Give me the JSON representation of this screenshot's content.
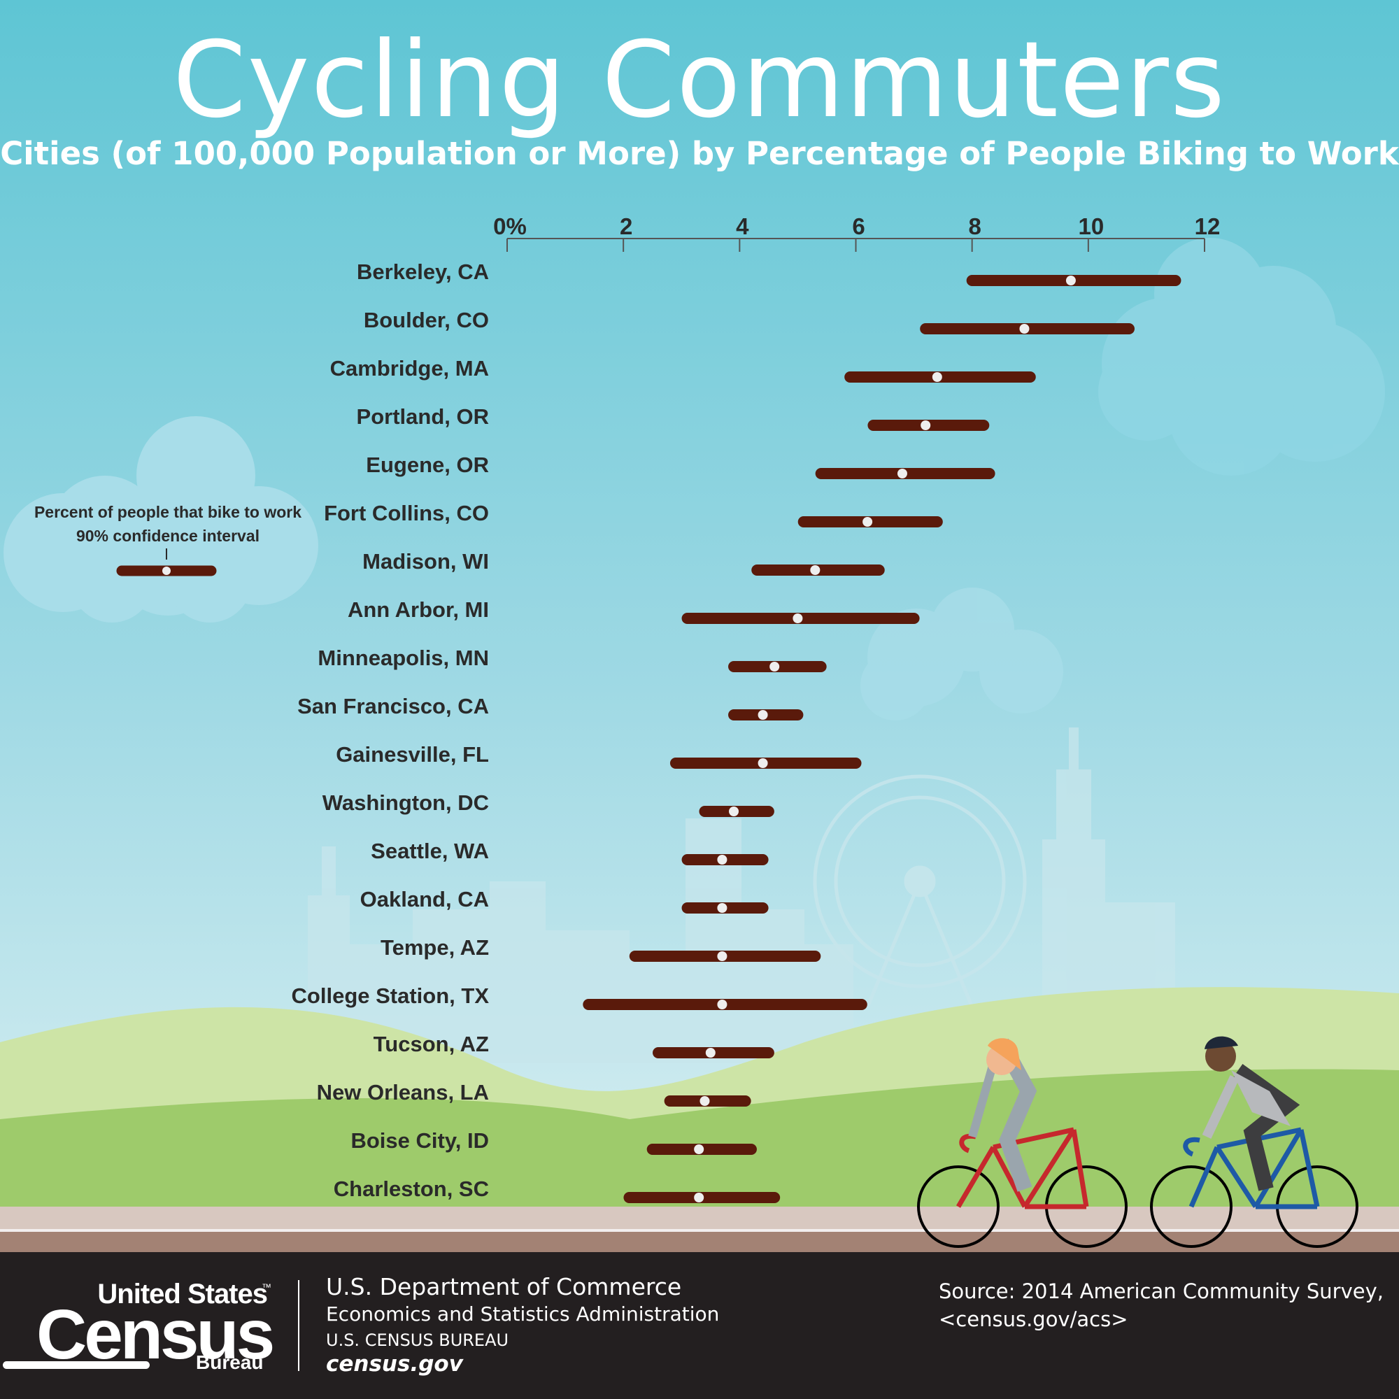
{
  "header": {
    "title": "Cycling Commuters",
    "subtitle": "Cities (of 100,000 Population or More) by Percentage of People Biking to Work"
  },
  "legend": {
    "line1": "Percent of people that bike to work",
    "line2": "90% confidence interval"
  },
  "colors": {
    "sky_top": "#5ec5d4",
    "sky_bottom": "#d3ecf0",
    "bar": "#5a1a0b",
    "dot": "#eeeeee",
    "text": "#2a2a2a",
    "footer": "#231f20",
    "cloud": "#a8dde9",
    "hill_light": "#cde4a6",
    "hill_dark": "#9ecb6b"
  },
  "chart_data": {
    "type": "dot-interval",
    "xlabel": "",
    "ylabel": "",
    "x_ticks": [
      "0%",
      "2",
      "4",
      "6",
      "8",
      "10",
      "12"
    ],
    "xlim": [
      0,
      12
    ],
    "grid": false,
    "series": [
      {
        "values": [
          {
            "city": "Berkeley, CA",
            "estimate": 9.7,
            "low": 8.0,
            "high": 11.5
          },
          {
            "city": "Boulder, CO",
            "estimate": 8.9,
            "low": 7.2,
            "high": 10.7
          },
          {
            "city": "Cambridge, MA",
            "estimate": 7.4,
            "low": 5.9,
            "high": 9.0
          },
          {
            "city": "Portland, OR",
            "estimate": 7.2,
            "low": 6.3,
            "high": 8.2
          },
          {
            "city": "Eugene, OR",
            "estimate": 6.8,
            "low": 5.4,
            "high": 8.3
          },
          {
            "city": "Fort Collins, CO",
            "estimate": 6.2,
            "low": 5.1,
            "high": 7.4
          },
          {
            "city": "Madison, WI",
            "estimate": 5.3,
            "low": 4.3,
            "high": 6.4
          },
          {
            "city": "Ann Arbor, MI",
            "estimate": 5.0,
            "low": 3.1,
            "high": 7.0
          },
          {
            "city": "Minneapolis, MN",
            "estimate": 4.6,
            "low": 3.9,
            "high": 5.4
          },
          {
            "city": "San Francisco, CA",
            "estimate": 4.4,
            "low": 3.9,
            "high": 5.0
          },
          {
            "city": "Gainesville, FL",
            "estimate": 4.4,
            "low": 2.9,
            "high": 6.0
          },
          {
            "city": "Washington, DC",
            "estimate": 3.9,
            "low": 3.4,
            "high": 4.5
          },
          {
            "city": "Seattle, WA",
            "estimate": 3.7,
            "low": 3.1,
            "high": 4.4
          },
          {
            "city": "Oakland, CA",
            "estimate": 3.7,
            "low": 3.1,
            "high": 4.4
          },
          {
            "city": "Tempe, AZ",
            "estimate": 3.7,
            "low": 2.2,
            "high": 5.3
          },
          {
            "city": "College Station, TX",
            "estimate": 3.7,
            "low": 1.4,
            "high": 6.1
          },
          {
            "city": "Tucson, AZ",
            "estimate": 3.5,
            "low": 2.6,
            "high": 4.5
          },
          {
            "city": "New Orleans, LA",
            "estimate": 3.4,
            "low": 2.8,
            "high": 4.1
          },
          {
            "city": "Boise City, ID",
            "estimate": 3.3,
            "low": 2.5,
            "high": 4.2
          },
          {
            "city": "Charleston, SC",
            "estimate": 3.3,
            "low": 2.1,
            "high": 4.6
          }
        ]
      }
    ]
  },
  "footer": {
    "census_top": "United States",
    "census_tm": "™",
    "census_big": "Census",
    "census_bureau": "Bureau",
    "dept_line1": "U.S. Department of Commerce",
    "dept_line2": "Economics and Statistics Administration",
    "dept_line3": "U.S. CENSUS BUREAU",
    "dept_line4": "census.gov",
    "source_line1": "Source:  2014 American Community Survey,",
    "source_line2": "<census.gov/acs>"
  }
}
